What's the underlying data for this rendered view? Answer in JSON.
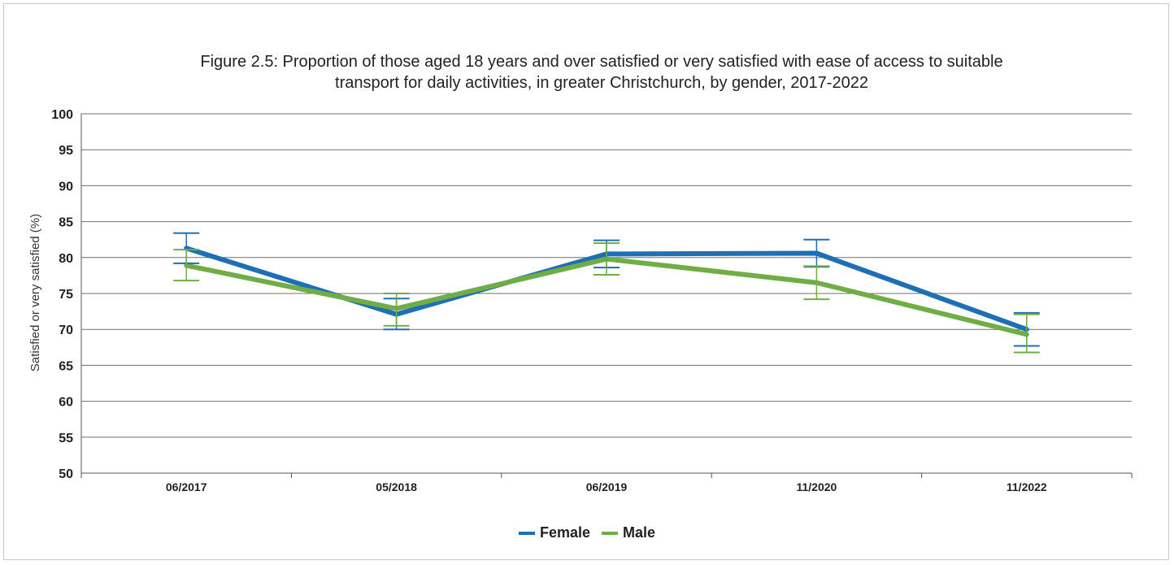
{
  "chart_data": {
    "type": "line",
    "title_line1": "Figure 2.5: Proportion of those aged 18 years and over satisfied or very satisfied with ease of access to suitable",
    "title_line2": "transport for daily activities, in greater Christchurch, by gender, 2017-2022",
    "xlabel": "",
    "ylabel": "Satisfied or very satisfied (%)",
    "ylim": [
      50,
      100
    ],
    "yticks": [
      50,
      55,
      60,
      65,
      70,
      75,
      80,
      85,
      90,
      95,
      100
    ],
    "categories": [
      "06/2017",
      "05/2018",
      "06/2019",
      "11/2020",
      "11/2022"
    ],
    "grid": true,
    "legend_position": "bottom",
    "series": [
      {
        "name": "Female",
        "color": "#1f6fb5",
        "values": [
          81.3,
          72.1,
          80.5,
          80.6,
          70.0
        ],
        "error_low": [
          79.2,
          70.0,
          78.6,
          78.7,
          67.7
        ],
        "error_high": [
          83.4,
          74.3,
          82.4,
          82.5,
          72.3
        ]
      },
      {
        "name": "Male",
        "color": "#70ad47",
        "values": [
          78.9,
          72.9,
          79.8,
          76.5,
          69.3
        ],
        "error_low": [
          76.8,
          70.5,
          77.6,
          74.2,
          66.8
        ],
        "error_high": [
          81.1,
          75.0,
          82.0,
          78.8,
          72.1
        ]
      }
    ]
  }
}
